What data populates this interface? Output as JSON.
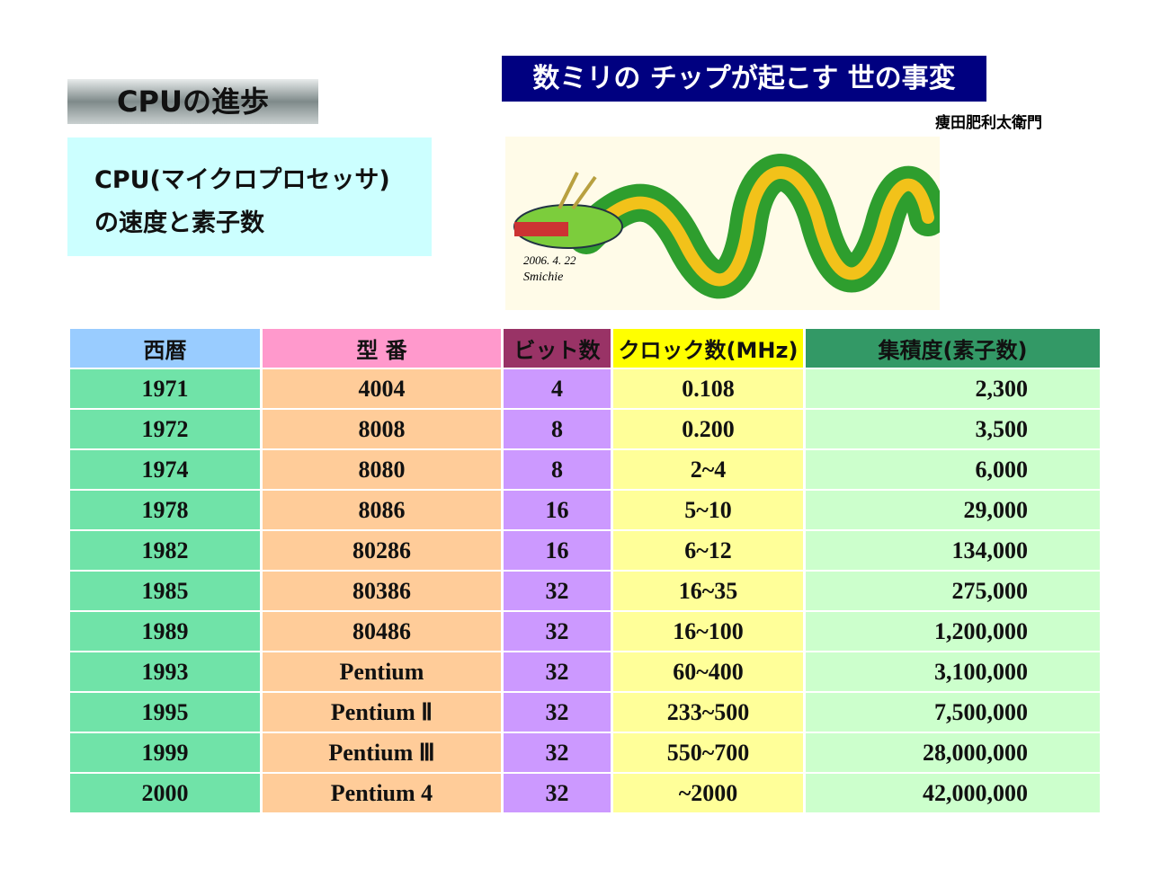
{
  "header": {
    "title": "CPUの進歩",
    "subtitle_lines": [
      "CPU(マイクロプロセッサ)",
      "の速度と素子数"
    ],
    "banner": "数ミリの チップが起こす 世の事変",
    "author": "痩田肥利太衛門"
  },
  "image": {
    "date": "2006. 4. 22",
    "signature": "Smichie"
  },
  "table": {
    "columns": [
      "西暦",
      "型 番",
      "ビット数",
      "クロック数(MHz)",
      "集積度(素子数)"
    ],
    "rows": [
      [
        "1971",
        "4004",
        "4",
        "0.108",
        "2,300"
      ],
      [
        "1972",
        "8008",
        "8",
        "0.200",
        "3,500"
      ],
      [
        "1974",
        "8080",
        "8",
        "2~4",
        "6,000"
      ],
      [
        "1978",
        "8086",
        "16",
        "5~10",
        "29,000"
      ],
      [
        "1982",
        "80286",
        "16",
        "6~12",
        "134,000"
      ],
      [
        "1985",
        "80386",
        "32",
        "16~35",
        "275,000"
      ],
      [
        "1989",
        "80486",
        "32",
        "16~100",
        "1,200,000"
      ],
      [
        "1993",
        "Pentium",
        "32",
        "60~400",
        "3,100,000"
      ],
      [
        "1995",
        "Pentium Ⅱ",
        "32",
        "233~500",
        "7,500,000"
      ],
      [
        "1999",
        "Pentium Ⅲ",
        "32",
        "550~700",
        "28,000,000"
      ],
      [
        "2000",
        "Pentium 4",
        "32",
        "~2000",
        "42,000,000"
      ]
    ]
  }
}
